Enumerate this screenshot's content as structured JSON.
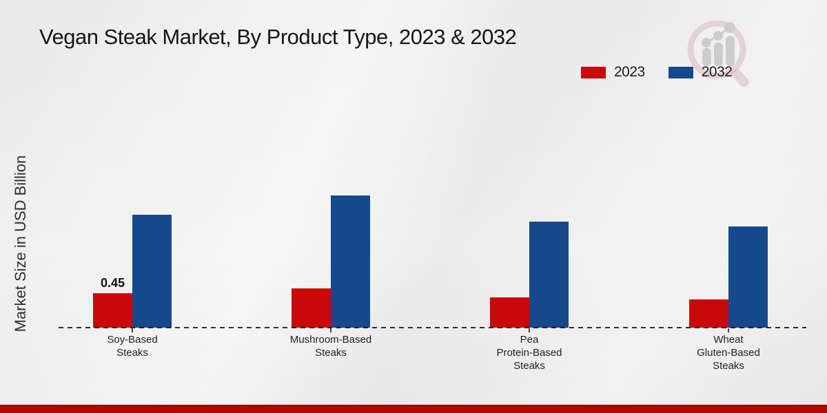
{
  "page_title": "Vegan Steak Market, By Product Type, 2023 & 2032",
  "chart_data": {
    "type": "bar",
    "title": "Vegan Steak Market, By Product Type, 2023 & 2032",
    "xlabel": "",
    "ylabel": "Market Size in USD Billion",
    "categories": [
      "Soy-Based Steaks",
      "Mushroom-Based Steaks",
      "Pea Protein-Based Steaks",
      "Wheat Gluten-Based Steaks"
    ],
    "category_label_lines": [
      [
        "Soy-Based",
        "Steaks"
      ],
      [
        "Mushroom-Based",
        "Steaks"
      ],
      [
        "Pea",
        "Protein-Based",
        "Steaks"
      ],
      [
        "Wheat",
        "Gluten-Based",
        "Steaks"
      ]
    ],
    "series": [
      {
        "name": "2023",
        "color": "#c90909",
        "values": [
          0.45,
          0.51,
          0.4,
          0.37
        ]
      },
      {
        "name": "2032",
        "color": "#15498b",
        "values": [
          1.48,
          1.73,
          1.39,
          1.32
        ]
      }
    ],
    "annotations": [
      {
        "series_index": 0,
        "category_index": 0,
        "text": "0.45"
      }
    ],
    "ylim": [
      0,
      2
    ],
    "grid": false,
    "axis_style": "dashed-baseline-only",
    "legend_position": "top-right"
  },
  "legend": {
    "items": [
      {
        "label": "2023",
        "color": "#c90909"
      },
      {
        "label": "2032",
        "color": "#15498b"
      }
    ]
  },
  "footer": {
    "accent_color": "#b50600"
  },
  "watermark": {
    "icon": "magnifier-bar-chart-logo",
    "ring_color": "#d9b2b4",
    "bar_color": "#c9c9cb"
  }
}
